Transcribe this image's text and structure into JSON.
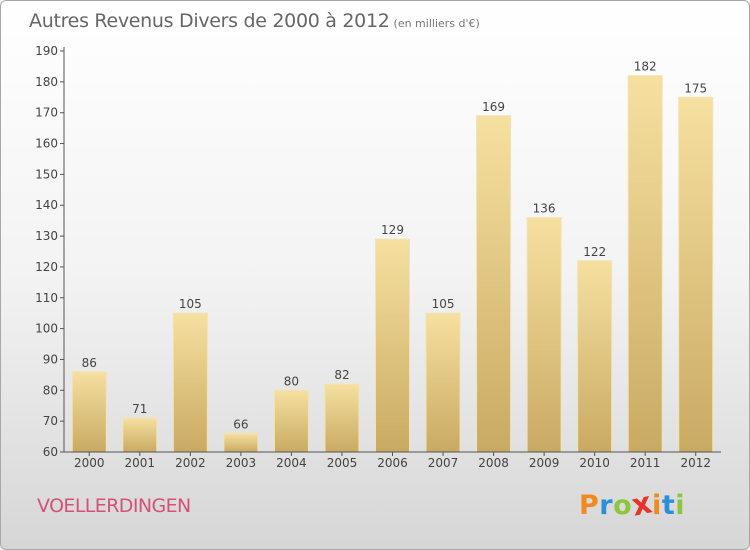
{
  "header": {
    "title": "Autres Revenus Divers de 2000 à 2012",
    "subtitle": "(en milliers d'€)"
  },
  "footer": {
    "commune": "VOELLERDINGEN",
    "logo_letters": [
      "P",
      "r",
      "o",
      "x",
      "i",
      "t",
      "i"
    ],
    "logo_colors": [
      "#f08a1e",
      "#2b8fd8",
      "#8cc63f",
      "#e8322a",
      "#f08a1e",
      "#2b8fd8",
      "#8cc63f"
    ]
  },
  "chart_data": {
    "type": "bar",
    "title": "Autres Revenus Divers de 2000 à 2012",
    "subtitle": "(en milliers d'€)",
    "categories": [
      "2000",
      "2001",
      "2002",
      "2003",
      "2004",
      "2005",
      "2006",
      "2007",
      "2008",
      "2009",
      "2010",
      "2011",
      "2012"
    ],
    "values": [
      86,
      71,
      105,
      66,
      80,
      82,
      129,
      105,
      169,
      136,
      122,
      182,
      175
    ],
    "ylim": [
      60,
      190
    ],
    "yticks": [
      60,
      70,
      80,
      90,
      100,
      110,
      120,
      130,
      140,
      150,
      160,
      170,
      180,
      190
    ],
    "xlabel": "",
    "ylabel": "",
    "grid": false,
    "data_labels": true,
    "bar_color": "#e6cd85"
  }
}
